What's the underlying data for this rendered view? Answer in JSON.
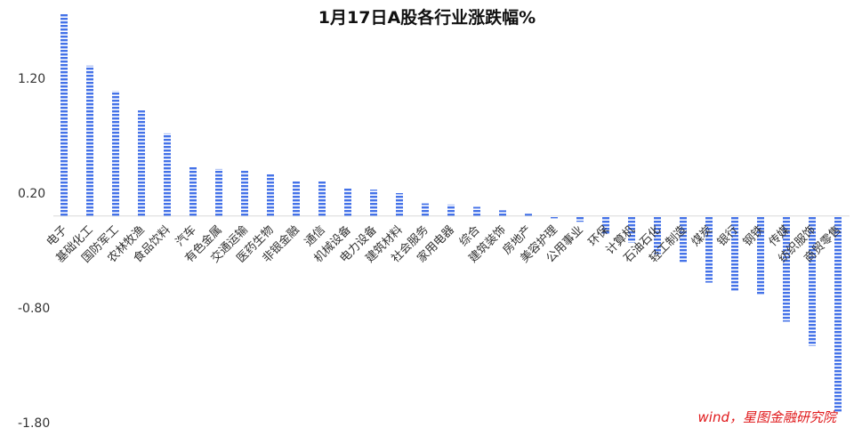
{
  "chart_data": {
    "type": "bar",
    "title": "1月17日A股各行业涨跌幅%",
    "source_note": "wind，星图金融研究院",
    "ylim": [
      -1.8,
      1.75
    ],
    "yticks": [
      "1.20",
      "0.20",
      "-0.80",
      "-1.80"
    ],
    "ytick_values": [
      1.2,
      0.2,
      -0.8,
      -1.8
    ],
    "grid": false,
    "legend": "none",
    "bar_color": "#4472e8",
    "categories": [
      "电子",
      "基础化工",
      "国防军工",
      "农林牧渔",
      "食品饮料",
      "汽车",
      "有色金属",
      "交通运输",
      "医药生物",
      "非银金融",
      "通信",
      "机械设备",
      "电力设备",
      "建筑材料",
      "社会服务",
      "家用电器",
      "综合",
      "建筑装饰",
      "房地产",
      "美容护理",
      "公用事业",
      "环保",
      "计算机",
      "石油石化",
      "轻工制造",
      "煤炭",
      "银行",
      "钢铁",
      "传媒",
      "纺织服饰",
      "商贸零售"
    ],
    "values": [
      1.76,
      1.31,
      1.09,
      0.92,
      0.72,
      0.43,
      0.41,
      0.4,
      0.37,
      0.31,
      0.31,
      0.25,
      0.23,
      0.2,
      0.11,
      0.1,
      0.08,
      0.05,
      0.02,
      -0.02,
      -0.05,
      -0.16,
      -0.23,
      -0.33,
      -0.4,
      -0.58,
      -0.66,
      -0.68,
      -0.92,
      -1.13,
      -1.71
    ]
  }
}
